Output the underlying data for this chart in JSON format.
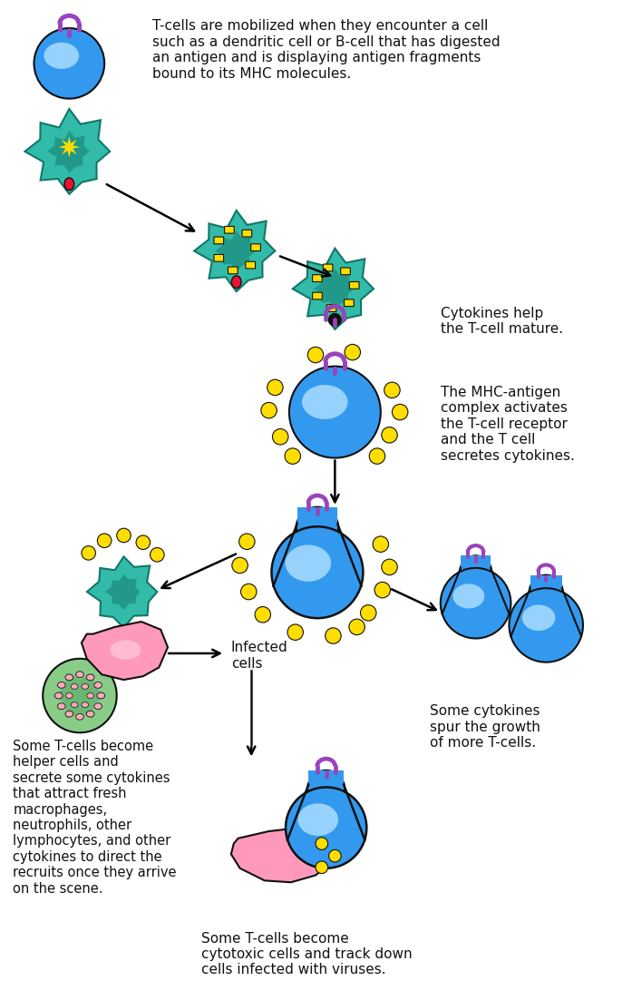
{
  "bg_color": "#ffffff",
  "blue": "#3399ee",
  "blue_hi": "#aaddff",
  "teal": "#33bbaa",
  "teal_dark": "#229988",
  "teal_outline": "#117766",
  "yellow": "#ffdd00",
  "pink": "#ff6699",
  "pink_light": "#ffaabb",
  "pink_blob": "#ff99bb",
  "purple": "#9944bb",
  "red": "#ee1133",
  "black": "#111111",
  "green_cell": "#88cc88",
  "green_cell_dark": "#55aa66",
  "text1": "T-cells are mobilized when they encounter a cell\nsuch as a dendritic cell or B-cell that has digested\nan antigen and is displaying antigen fragments\nbound to its MHC molecules.",
  "text2": "Cytokines help\nthe T-cell mature.",
  "text3": "The MHC-antigen\ncomplex activates\nthe T-cell receptor\nand the T cell\nsecretes cytokines.",
  "text4": "Infected\ncells",
  "text5": "Some cytokines\nspur the growth\nof more T-cells.",
  "text6": "Some T-cells become\nhelper cells and\nsecrete some cytokines\nthat attract fresh\nmacrophages,\nneutrophils, other\nlymphocytes, and other\ncytokines to direct the\nrecruits once they arrive\non the scene.",
  "text7": "Some T-cells become\ncytotoxic cells and track down\ncells infected with viruses."
}
